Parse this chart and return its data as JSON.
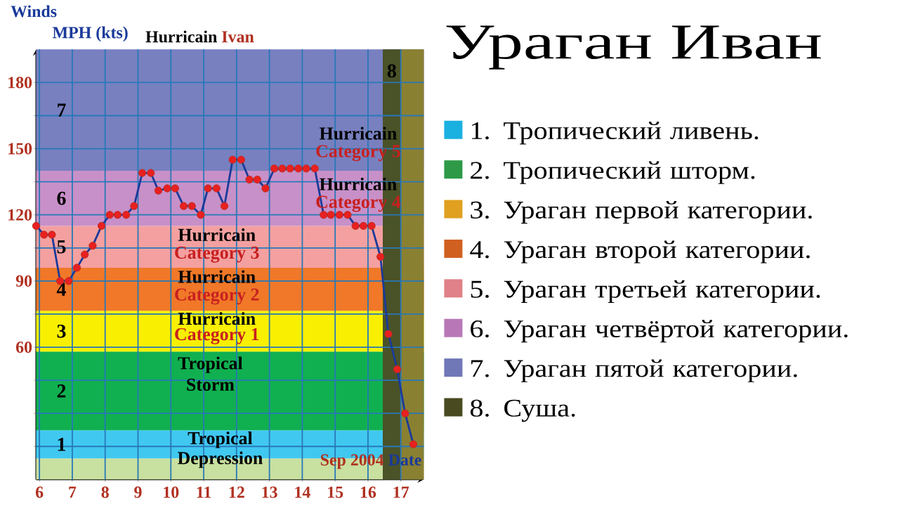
{
  "chart_data": [
    {
      "type": "line",
      "ylabel": "MPH (kts)",
      "xlabel": "Date",
      "color": "#1a3a9a",
      "marker": "circle",
      "grid": true,
      "annotations": [
        "Winds",
        "Hurricain",
        "Ivan",
        "Sep 2004",
        "Hurricain",
        "Category 5",
        "Hurricain",
        "Category 4",
        "Hurricain",
        "Category 3",
        "Hurricain",
        "Category 2",
        "Hurricain",
        "Category 1",
        "Tropical",
        "Storm",
        "Tropical",
        "Depression"
      ],
      "x": [
        5.9,
        6.14,
        6.38,
        6.63,
        6.89,
        7.14,
        7.38,
        7.62,
        7.89,
        8.14,
        8.38,
        8.64,
        8.88,
        9.13,
        9.39,
        9.62,
        9.89,
        10.13,
        10.39,
        10.64,
        10.91,
        11.13,
        11.39,
        11.63,
        11.88,
        12.14,
        12.39,
        12.63,
        12.88,
        13.15,
        13.39,
        13.63,
        13.88,
        14.12,
        14.38,
        14.65,
        14.87,
        15.13,
        15.38,
        15.62,
        15.86,
        16.11,
        16.38,
        16.62,
        16.89,
        17.13,
        17.38
      ],
      "values": [
        115,
        111,
        111,
        90,
        90,
        96,
        102,
        106,
        115,
        120,
        120,
        120,
        124,
        139,
        139,
        131,
        132,
        132,
        124,
        124,
        120,
        132,
        132,
        124,
        145,
        145,
        136,
        136,
        132,
        141,
        141,
        141,
        141,
        141,
        141,
        120,
        120,
        120,
        120,
        115,
        115,
        115,
        101,
        66,
        50,
        30,
        16
      ],
      "xlim": [
        5.9,
        17.7
      ],
      "ylim": [
        0,
        195
      ],
      "xticks": [
        6,
        7,
        8,
        9,
        10,
        11,
        12,
        13,
        14,
        15,
        16,
        17
      ],
      "yticks": [
        {
          "value": 15,
          "label": null
        },
        {
          "value": 30,
          "label": null
        },
        {
          "value": 45,
          "label": null
        },
        60,
        {
          "value": 75,
          "label": null
        },
        90,
        {
          "value": 105,
          "label": null
        },
        120,
        {
          "value": 135,
          "label": null
        },
        150,
        {
          "value": 165,
          "label": null
        },
        180
      ],
      "bands": [
        {
          "axis": "y",
          "from": 0,
          "to": 9.6,
          "color": "#c8e0a0"
        },
        {
          "axis": "y",
          "from": 9.6,
          "to": 22.3,
          "label": "1",
          "color": "#40c8f0"
        },
        {
          "axis": "y",
          "from": 22.3,
          "to": 58,
          "label": "2",
          "color": "#10b050"
        },
        {
          "axis": "y",
          "from": 58,
          "to": 76.5,
          "label": "3",
          "color": "#f8f000"
        },
        {
          "axis": "y",
          "from": 76.5,
          "to": 96,
          "label": "4",
          "color": "#f07828"
        },
        {
          "axis": "y",
          "from": 96,
          "to": 115,
          "label": "5",
          "color": "#f4a0a0"
        },
        {
          "axis": "y",
          "from": 115,
          "to": 140,
          "label": "6",
          "color": "#c890c8"
        },
        {
          "axis": "y",
          "from": 140,
          "to": 195,
          "label": "7",
          "color": "#7880c0"
        },
        {
          "axis": "x",
          "from": 16.45,
          "to": 17.0,
          "label": "8",
          "color": "#4a5228"
        },
        {
          "axis": "x",
          "from": 17.0,
          "to": 17.7,
          "color": "#8a8032"
        }
      ]
    },
    {
      "type": "other",
      "title": "Ураган Иван",
      "annotations": [
        "1. Тропический ливень.",
        "2. Тропический шторм.",
        "3. Ураган первой категории.",
        "4. Ураган второй категории.",
        "5. Ураган третьей категории.",
        "6. Ураган четвёртой категории.",
        "7. Ураган пятой категории.",
        "8. Суша."
      ],
      "colors": [
        "#1ab0e0",
        "#2e9a48",
        "#e0a020",
        "#d06020",
        "#e08088",
        "#b878b8",
        "#7078b8",
        "#4a4a20"
      ]
    }
  ]
}
